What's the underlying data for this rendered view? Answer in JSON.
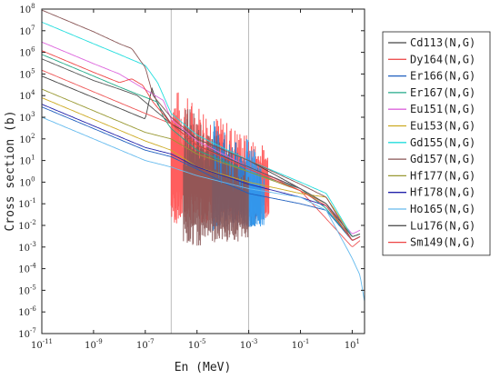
{
  "chart_data": {
    "type": "line",
    "xlabel": "En (MeV)",
    "ylabel": "Cross section (b)",
    "xscale": "log",
    "yscale": "log",
    "xlim": [
      1e-11,
      30
    ],
    "ylim": [
      1e-07,
      100000000.0
    ],
    "x_ticks": [
      {
        "v": 1e-11,
        "b": "10",
        "e": "-11"
      },
      {
        "v": 1e-09,
        "b": "10",
        "e": "-9"
      },
      {
        "v": 1e-07,
        "b": "10",
        "e": "-7"
      },
      {
        "v": 1e-05,
        "b": "10",
        "e": "-5"
      },
      {
        "v": 0.001,
        "b": "10",
        "e": "-3"
      },
      {
        "v": 0.1,
        "b": "10",
        "e": "-1"
      },
      {
        "v": 10,
        "b": "10",
        "e": "1"
      }
    ],
    "y_ticks": [
      {
        "v": 1e-07,
        "b": "10",
        "e": "-7"
      },
      {
        "v": 1e-06,
        "b": "10",
        "e": "-6"
      },
      {
        "v": 1e-05,
        "b": "10",
        "e": "-5"
      },
      {
        "v": 0.0001,
        "b": "10",
        "e": "-4"
      },
      {
        "v": 0.001,
        "b": "10",
        "e": "-3"
      },
      {
        "v": 0.01,
        "b": "10",
        "e": "-2"
      },
      {
        "v": 0.1,
        "b": "10",
        "e": "-1"
      },
      {
        "v": 1,
        "b": "10",
        "e": "0"
      },
      {
        "v": 10,
        "b": "10",
        "e": "1"
      },
      {
        "v": 100,
        "b": "10",
        "e": "2"
      },
      {
        "v": 1000,
        "b": "10",
        "e": "3"
      },
      {
        "v": 10000,
        "b": "10",
        "e": "4"
      },
      {
        "v": 100000,
        "b": "10",
        "e": "5"
      },
      {
        "v": 1000000,
        "b": "10",
        "e": "6"
      },
      {
        "v": 10000000,
        "b": "10",
        "e": "7"
      },
      {
        "v": 100000000,
        "b": "10",
        "e": "8"
      }
    ],
    "vlines": [
      1e-06,
      0.001
    ],
    "grid": false,
    "legend_position": "right, outside plot",
    "series": [
      {
        "name": "Cd113(N,G)",
        "color": "#444444",
        "points": [
          [
            1e-11,
            80000
          ],
          [
            1e-08,
            2600
          ],
          [
            1e-07,
            830
          ],
          [
            1.8e-07,
            22000
          ],
          [
            3e-07,
            4000
          ],
          [
            1e-06,
            500
          ],
          [
            1e-05,
            100
          ],
          [
            0.001,
            10
          ],
          [
            0.1,
            0.5
          ],
          [
            1,
            0.1
          ],
          [
            10,
            0.003
          ],
          [
            20,
            0.004
          ]
        ]
      },
      {
        "name": "Dy164(N,G)",
        "color": "#ee5555",
        "points": [
          [
            1e-11,
            150000
          ],
          [
            1e-09,
            15000
          ],
          [
            1e-07,
            1500
          ],
          [
            1e-06,
            500
          ],
          [
            1e-05,
            50
          ],
          [
            0.001,
            4
          ],
          [
            0.01,
            1.5
          ],
          [
            0.1,
            0.4
          ],
          [
            1,
            0.02
          ],
          [
            10,
            0.001
          ],
          [
            20,
            0.002
          ]
        ]
      },
      {
        "name": "Er166(N,G)",
        "color": "#1f5fbf",
        "points": [
          [
            1e-11,
            3000
          ],
          [
            1e-09,
            300
          ],
          [
            1e-07,
            30
          ],
          [
            1e-06,
            15
          ],
          [
            1e-05,
            4
          ],
          [
            0.0001,
            1
          ],
          [
            0.001,
            0.3
          ],
          [
            0.1,
            0.1
          ],
          [
            1,
            0.05
          ],
          [
            10,
            0.002
          ],
          [
            20,
            0.003
          ]
        ]
      },
      {
        "name": "Er167(N,G)",
        "color": "#22aa88",
        "points": [
          [
            1e-11,
            800000
          ],
          [
            1e-09,
            80000
          ],
          [
            1e-08,
            25000
          ],
          [
            3e-07,
            5000
          ],
          [
            5e-07,
            1000
          ],
          [
            1e-06,
            300
          ],
          [
            1e-05,
            30
          ],
          [
            0.001,
            3
          ],
          [
            0.1,
            0.5
          ],
          [
            1,
            0.06
          ],
          [
            10,
            0.002
          ],
          [
            20,
            0.003
          ]
        ]
      },
      {
        "name": "Eu151(N,G)",
        "color": "#dd66dd",
        "points": [
          [
            1e-11,
            3000000.0
          ],
          [
            1e-09,
            300000
          ],
          [
            1e-08,
            100000
          ],
          [
            5e-07,
            6000
          ],
          [
            1e-06,
            800
          ],
          [
            1e-05,
            80
          ],
          [
            0.001,
            5
          ],
          [
            0.1,
            0.5
          ],
          [
            1,
            0.1
          ],
          [
            10,
            0.004
          ],
          [
            20,
            0.006
          ]
        ]
      },
      {
        "name": "Eu153(N,G)",
        "color": "#ccaa22",
        "points": [
          [
            1e-11,
            8000
          ],
          [
            1e-09,
            800
          ],
          [
            1e-07,
            80
          ],
          [
            1e-06,
            30
          ],
          [
            1e-05,
            5
          ],
          [
            0.001,
            1
          ],
          [
            0.1,
            0.3
          ],
          [
            1,
            0.2
          ],
          [
            10,
            0.003
          ],
          [
            20,
            0.004
          ]
        ]
      },
      {
        "name": "Gd155(N,G)",
        "color": "#22dddd",
        "points": [
          [
            1e-11,
            25000000.0
          ],
          [
            1e-09,
            2500000.0
          ],
          [
            1e-08,
            800000
          ],
          [
            1e-07,
            250000
          ],
          [
            3e-07,
            40000
          ],
          [
            1e-06,
            1500
          ],
          [
            1e-05,
            150
          ],
          [
            0.001,
            10
          ],
          [
            0.1,
            1
          ],
          [
            1,
            0.3
          ],
          [
            10,
            0.003
          ],
          [
            20,
            0.004
          ]
        ]
      },
      {
        "name": "Gd157(N,G)",
        "color": "#885555",
        "points": [
          [
            1e-11,
            90000000.0
          ],
          [
            1e-09,
            9000000.0
          ],
          [
            1e-08,
            2500000.0
          ],
          [
            3e-08,
            1500000.0
          ],
          [
            1e-07,
            200000
          ],
          [
            2e-07,
            10000
          ],
          [
            1e-06,
            1000
          ],
          [
            1e-05,
            100
          ],
          [
            0.001,
            10
          ],
          [
            0.1,
            0.8
          ],
          [
            1,
            0.2
          ],
          [
            10,
            0.002
          ],
          [
            20,
            0.003
          ]
        ]
      },
      {
        "name": "Hf177(N,G)",
        "color": "#999933",
        "points": [
          [
            1e-11,
            20000
          ],
          [
            1e-09,
            2000
          ],
          [
            1e-07,
            200
          ],
          [
            1e-06,
            100
          ],
          [
            1e-05,
            20
          ],
          [
            0.001,
            3
          ],
          [
            0.1,
            0.4
          ],
          [
            1,
            0.1
          ],
          [
            10,
            0.002
          ],
          [
            20,
            0.003
          ]
        ]
      },
      {
        "name": "Hf178(N,G)",
        "color": "#2222aa",
        "points": [
          [
            1e-11,
            4000
          ],
          [
            1e-09,
            400
          ],
          [
            1e-07,
            40
          ],
          [
            1e-06,
            20
          ],
          [
            1e-05,
            5
          ],
          [
            0.001,
            0.8
          ],
          [
            0.1,
            0.2
          ],
          [
            1,
            0.08
          ],
          [
            10,
            0.002
          ],
          [
            20,
            0.003
          ]
        ]
      },
      {
        "name": "Ho165(N,G)",
        "color": "#66bbee",
        "points": [
          [
            1e-11,
            1000
          ],
          [
            1e-09,
            100
          ],
          [
            1e-07,
            10
          ],
          [
            1e-06,
            5
          ],
          [
            1e-05,
            2
          ],
          [
            0.001,
            0.5
          ],
          [
            0.1,
            0.2
          ],
          [
            1,
            0.05
          ],
          [
            10,
            0.0003
          ],
          [
            20,
            5e-05
          ],
          [
            30,
            3e-06
          ]
        ]
      },
      {
        "name": "Lu176(N,G)",
        "color": "#555555",
        "points": [
          [
            1e-11,
            500000
          ],
          [
            1e-09,
            50000
          ],
          [
            1e-08,
            20000
          ],
          [
            5e-08,
            10000
          ],
          [
            1e-07,
            5000
          ],
          [
            1e-06,
            500
          ],
          [
            1e-05,
            50
          ],
          [
            0.001,
            5
          ],
          [
            0.1,
            0.5
          ],
          [
            1,
            0.1
          ],
          [
            10,
            0.003
          ],
          [
            20,
            0.004
          ]
        ]
      },
      {
        "name": "Sm149(N,G)",
        "color": "#ee4444",
        "points": [
          [
            1e-11,
            1200000.0
          ],
          [
            1e-09,
            120000
          ],
          [
            1e-08,
            40000
          ],
          [
            3e-08,
            60000
          ],
          [
            8e-08,
            30000
          ],
          [
            2e-07,
            5000
          ],
          [
            1e-06,
            500
          ],
          [
            1e-05,
            50
          ],
          [
            0.001,
            4
          ],
          [
            0.1,
            0.4
          ],
          [
            1,
            0.08
          ],
          [
            10,
            0.002
          ],
          [
            20,
            0.003
          ]
        ]
      }
    ],
    "resonance_bands": [
      {
        "series": "Sm149(N,G)",
        "color": "#ff4d4d",
        "x_start": 1e-06,
        "x_end": 0.006,
        "y_low": 0.01,
        "y_high": 30000
      },
      {
        "series": "Er166(N,G)",
        "color": "#1f7fd6",
        "x_start": 4e-05,
        "x_end": 0.003,
        "y_low": 0.005,
        "y_high": 1000
      },
      {
        "series": "Ho165(N,G)",
        "color": "#3399ee",
        "x_start": 0.0008,
        "x_end": 0.004,
        "y_low": 0.005,
        "y_high": 300
      },
      {
        "series": "Gd157(N,G)",
        "color": "#885555",
        "x_start": 3e-06,
        "x_end": 0.001,
        "y_low": 0.001,
        "y_high": 5000
      }
    ]
  }
}
